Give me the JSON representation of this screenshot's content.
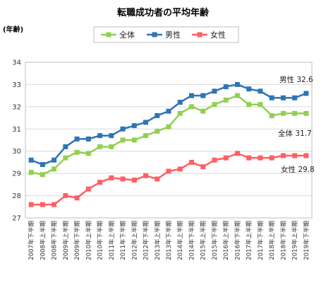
{
  "chart_data": {
    "type": "line",
    "title": "転職成功者の平均年齢",
    "ylabel": "(年齢)",
    "ylim": [
      27,
      34
    ],
    "yticks": [
      27,
      28,
      29,
      30,
      31,
      32,
      33,
      34
    ],
    "grid": true,
    "legend_position": "top-center",
    "categories": [
      "2007年下半期",
      "2008年上半期",
      "2008年下半期",
      "2009年上半期",
      "2009年下半期",
      "2010年上半期",
      "2010年下半期",
      "2011年上半期",
      "2011年下半期",
      "2012年上半期",
      "2012年下半期",
      "2013年上半期",
      "2013年下半期",
      "2014年上半期",
      "2014年下半期",
      "2015年上半期",
      "2015年下半期",
      "2016年上半期",
      "2016年下半期",
      "2017年上半期",
      "2017年下半期",
      "2018年上半期",
      "2018年下半期",
      "2019年上半期",
      "2019年下半期"
    ],
    "series": [
      {
        "name": "全体",
        "color": "#92d050",
        "marker": "square",
        "values": [
          29.05,
          28.95,
          29.2,
          29.7,
          29.95,
          29.9,
          30.2,
          30.2,
          30.5,
          30.5,
          30.7,
          30.9,
          31.1,
          31.7,
          32.0,
          31.8,
          32.1,
          32.3,
          32.5,
          32.1,
          32.1,
          31.6,
          31.7,
          31.7,
          31.7
        ],
        "end_label": "全体 31.7"
      },
      {
        "name": "男性",
        "color": "#2e75b6",
        "marker": "square",
        "values": [
          29.6,
          29.4,
          29.6,
          30.2,
          30.55,
          30.55,
          30.7,
          30.7,
          31.0,
          31.15,
          31.3,
          31.6,
          31.8,
          32.2,
          32.5,
          32.5,
          32.7,
          32.9,
          33.0,
          32.8,
          32.7,
          32.4,
          32.4,
          32.4,
          32.6
        ],
        "end_label": "男性 32.6"
      },
      {
        "name": "女性",
        "color": "#ff5f63",
        "marker": "square",
        "values": [
          27.6,
          27.6,
          27.6,
          28.0,
          27.9,
          28.3,
          28.6,
          28.8,
          28.75,
          28.7,
          28.9,
          28.75,
          29.1,
          29.2,
          29.5,
          29.3,
          29.6,
          29.7,
          29.9,
          29.7,
          29.7,
          29.7,
          29.8,
          29.8,
          29.8
        ],
        "end_label": "女性 29.8"
      }
    ]
  }
}
